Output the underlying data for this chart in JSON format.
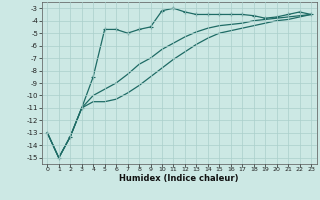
{
  "xlabel": "Humidex (Indice chaleur)",
  "background_color": "#cce8e4",
  "grid_color": "#aacfcb",
  "line_color": "#1e6b65",
  "xlim": [
    -0.5,
    23.5
  ],
  "ylim": [
    -15.5,
    -2.5
  ],
  "yticks": [
    -3,
    -4,
    -5,
    -6,
    -7,
    -8,
    -9,
    -10,
    -11,
    -12,
    -13,
    -14,
    -15
  ],
  "xticks": [
    0,
    1,
    2,
    3,
    4,
    5,
    6,
    7,
    8,
    9,
    10,
    11,
    12,
    13,
    14,
    15,
    16,
    17,
    18,
    19,
    20,
    21,
    22,
    23
  ],
  "curve1_x": [
    0,
    1,
    2,
    3,
    4,
    5,
    6,
    7,
    8,
    9,
    10,
    11,
    12,
    13,
    14,
    15,
    16,
    17,
    18,
    19,
    20,
    21,
    22,
    23
  ],
  "curve1_y": [
    -13.0,
    -15.0,
    -13.3,
    -11.0,
    -8.5,
    -4.7,
    -4.7,
    -5.0,
    -4.7,
    -4.5,
    -3.2,
    -3.0,
    -3.3,
    -3.5,
    -3.5,
    -3.5,
    -3.5,
    -3.5,
    -3.6,
    -3.8,
    -3.7,
    -3.5,
    -3.3,
    -3.5
  ],
  "curve2_x": [
    0,
    1,
    2,
    3,
    4,
    5,
    6,
    7,
    8,
    9,
    10,
    11,
    12,
    13,
    14,
    15,
    16,
    17,
    18,
    19,
    20,
    21,
    22,
    23
  ],
  "curve2_y": [
    -13.0,
    -15.0,
    -13.3,
    -11.0,
    -10.0,
    -9.5,
    -9.0,
    -8.3,
    -7.5,
    -7.0,
    -6.3,
    -5.8,
    -5.3,
    -4.9,
    -4.6,
    -4.4,
    -4.3,
    -4.2,
    -4.0,
    -3.9,
    -3.8,
    -3.7,
    -3.6,
    -3.5
  ],
  "curve3_x": [
    0,
    1,
    2,
    3,
    4,
    5,
    6,
    7,
    8,
    9,
    10,
    11,
    12,
    13,
    14,
    15,
    16,
    17,
    18,
    19,
    20,
    21,
    22,
    23
  ],
  "curve3_y": [
    -13.0,
    -15.0,
    -13.3,
    -11.0,
    -10.5,
    -10.5,
    -10.3,
    -9.8,
    -9.2,
    -8.5,
    -7.8,
    -7.1,
    -6.5,
    -5.9,
    -5.4,
    -5.0,
    -4.8,
    -4.6,
    -4.4,
    -4.2,
    -4.0,
    -3.9,
    -3.7,
    -3.5
  ]
}
